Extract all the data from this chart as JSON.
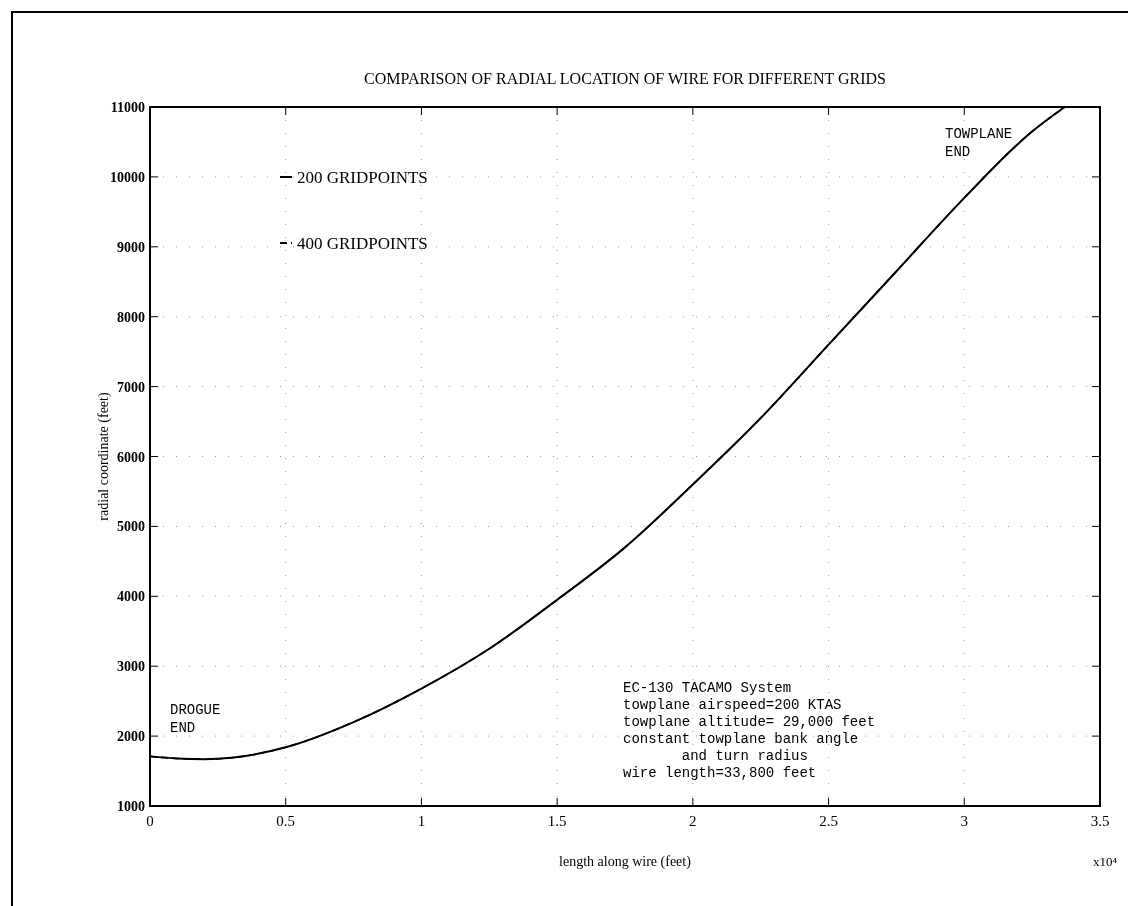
{
  "chart_data": {
    "type": "line",
    "title": "COMPARISON OF RADIAL LOCATION OF WIRE FOR DIFFERENT GRIDS",
    "xlabel": "length along wire (feet)",
    "ylabel": "radial coordinate (feet)",
    "x": [
      0,
      0.1,
      0.2,
      0.3,
      0.5,
      0.75,
      1,
      1.25,
      1.5,
      1.75,
      2,
      2.25,
      2.5,
      2.75,
      3,
      3.25,
      3.37
    ],
    "series": [
      {
        "name": "200 GRIDPOINTS",
        "color": "#000000",
        "line_style": "solid",
        "values": [
          1710,
          1680,
          1670,
          1690,
          1840,
          2200,
          2680,
          3250,
          3950,
          4700,
          5600,
          6550,
          7600,
          8650,
          9700,
          10650,
          11000
        ]
      },
      {
        "name": "400 GRIDPOINTS",
        "color": "#000000",
        "line_style": "dashed",
        "values": [
          1710,
          1680,
          1670,
          1690,
          1840,
          2200,
          2680,
          3250,
          3950,
          4700,
          5600,
          6550,
          7600,
          8650,
          9700,
          10650,
          11000
        ]
      }
    ],
    "xlim": [
      0,
      3.5
    ],
    "ylim": [
      1000,
      11000
    ],
    "xticks": [
      0,
      0.5,
      1,
      1.5,
      2,
      2.5,
      3,
      3.5
    ],
    "yticks": [
      1000,
      2000,
      3000,
      4000,
      5000,
      6000,
      7000,
      8000,
      9000,
      10000,
      11000
    ],
    "grid": true,
    "legend": "top left",
    "annotations": [
      "DROGUE\nEND",
      "TOWPLANE\nEND",
      "EC-130 TACAMO System\ntowplane airspeed=200 KTAS\ntowplane altitude= 29,000 feet\nconstant towplane bank angle\n       and turn radius\nwire length=33,800 feet",
      "x10⁴"
    ]
  }
}
